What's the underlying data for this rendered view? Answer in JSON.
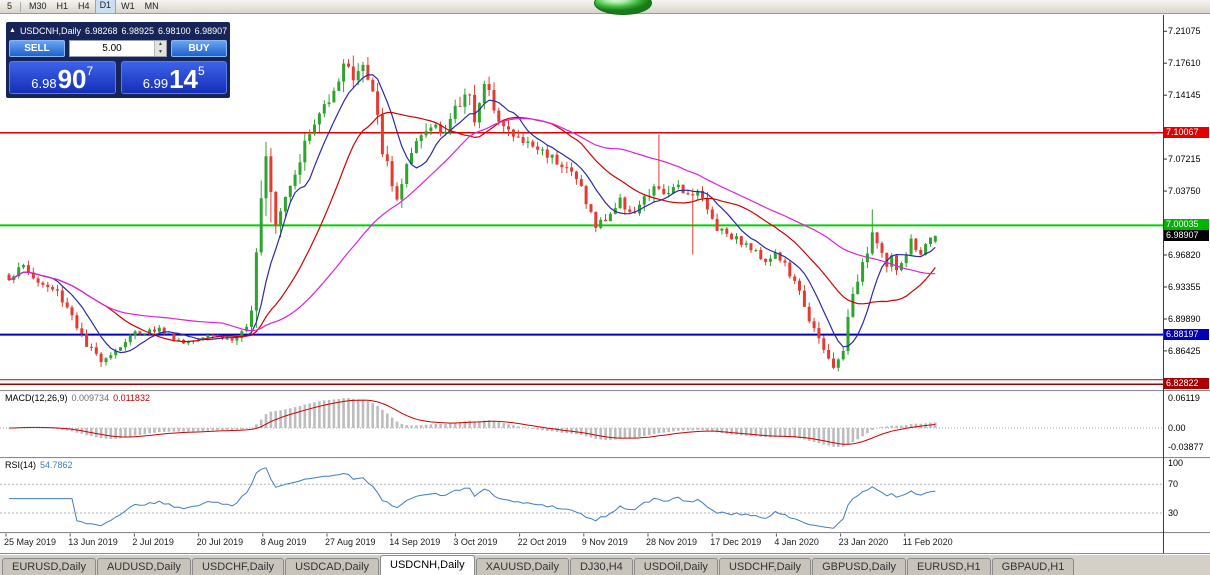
{
  "toolbar": {
    "items": [
      "5",
      "M30",
      "H1",
      "H4",
      "D1",
      "W1",
      "MN"
    ],
    "active": "D1"
  },
  "trade_panel": {
    "header": {
      "collapse_icon": "▲",
      "symbol": "USDCNH,Daily",
      "open": "6.98268",
      "high": "6.98925",
      "low": "6.98100",
      "close": "6.98907"
    },
    "sell_label": "SELL",
    "buy_label": "BUY",
    "volume": "5.00",
    "spin_up": "▲",
    "spin_down": "▼",
    "sell_price": {
      "big_left": "6.98",
      "big": "90",
      "sup": "7"
    },
    "buy_price": {
      "big_left": "6.99",
      "big": "14",
      "sup": "5"
    }
  },
  "price_axis": {
    "ticks": [
      {
        "value": 7.21075,
        "label": "7.21075"
      },
      {
        "value": 7.1761,
        "label": "7.17610"
      },
      {
        "value": 7.14145,
        "label": "7.14145"
      },
      {
        "value": 7.07215,
        "label": "7.07215"
      },
      {
        "value": 7.0375,
        "label": "7.03750"
      },
      {
        "value": 6.9682,
        "label": "6.96820"
      },
      {
        "value": 6.93355,
        "label": "6.93355"
      },
      {
        "value": 6.8989,
        "label": "6.89890"
      },
      {
        "value": 6.86425,
        "label": "6.86425"
      }
    ],
    "highlights": [
      {
        "value": 7.10067,
        "label": "7.10067",
        "bg": "#e00000"
      },
      {
        "value": 7.00035,
        "label": "7.00035",
        "bg": "#00b400"
      },
      {
        "value": 6.98907,
        "label": "6.98907",
        "bg": "#000000"
      },
      {
        "value": 6.88197,
        "label": "6.88197",
        "bg": "#0000b4"
      },
      {
        "value": 6.82822,
        "label": "6.82822",
        "bg": "#a80000"
      }
    ]
  },
  "hlines": [
    {
      "value": 7.10067,
      "color": "#e00000",
      "width": 1.5
    },
    {
      "value": 7.00035,
      "color": "#00d200",
      "width": 2
    },
    {
      "value": 6.88197,
      "color": "#0000c0",
      "width": 2
    },
    {
      "value": 6.833,
      "color": "#cc0000",
      "width": 1
    },
    {
      "value": 6.82822,
      "color": "#990000",
      "width": 1.5
    }
  ],
  "chart_data": {
    "type": "candlestick",
    "title": "USDCNH,Daily",
    "symbol": "USDCNH",
    "timeframe": "Daily",
    "ohlc_current": {
      "open": 6.98268,
      "high": 6.98925,
      "low": 6.981,
      "close": 6.98907
    },
    "bars": 192,
    "price_range": [
      6.8228,
      7.2273
    ],
    "x_axis_dates": [
      "25 May 2019",
      "13 Jun 2019",
      "2 Jul 2019",
      "20 Jul 2019",
      "8 Aug 2019",
      "27 Aug 2019",
      "14 Sep 2019",
      "3 Oct 2019",
      "22 Oct 2019",
      "9 Nov 2019",
      "28 Nov 2019",
      "17 Dec 2019",
      "4 Jan 2020",
      "23 Jan 2020",
      "11 Feb 2020"
    ],
    "close_anchors": [
      [
        0,
        6.944
      ],
      [
        3,
        6.956
      ],
      [
        6,
        6.938
      ],
      [
        10,
        6.928
      ],
      [
        13,
        6.904
      ],
      [
        16,
        6.868
      ],
      [
        19,
        6.856
      ],
      [
        22,
        6.865
      ],
      [
        26,
        6.884
      ],
      [
        31,
        6.888
      ],
      [
        36,
        6.873
      ],
      [
        41,
        6.883
      ],
      [
        46,
        6.876
      ],
      [
        49,
        6.884
      ],
      [
        50,
        6.905
      ],
      [
        51,
        6.985
      ],
      [
        52,
        7.045
      ],
      [
        53,
        7.085
      ],
      [
        54,
        7.05
      ],
      [
        55,
        7.012
      ],
      [
        56,
        7.022
      ],
      [
        58,
        7.048
      ],
      [
        61,
        7.088
      ],
      [
        64,
        7.12
      ],
      [
        67,
        7.152
      ],
      [
        70,
        7.178
      ],
      [
        71,
        7.162
      ],
      [
        73,
        7.172
      ],
      [
        75,
        7.14
      ],
      [
        77,
        7.085
      ],
      [
        79,
        7.04
      ],
      [
        80,
        7.032
      ],
      [
        82,
        7.062
      ],
      [
        85,
        7.096
      ],
      [
        88,
        7.112
      ],
      [
        90,
        7.104
      ],
      [
        93,
        7.132
      ],
      [
        95,
        7.148
      ],
      [
        96,
        7.118
      ],
      [
        98,
        7.148
      ],
      [
        100,
        7.132
      ],
      [
        102,
        7.108
      ],
      [
        104,
        7.096
      ],
      [
        107,
        7.089
      ],
      [
        111,
        7.078
      ],
      [
        115,
        7.064
      ],
      [
        118,
        7.042
      ],
      [
        121,
        6.998
      ],
      [
        123,
        7.008
      ],
      [
        126,
        7.026
      ],
      [
        129,
        7.014
      ],
      [
        132,
        7.034
      ],
      [
        134,
        7.042
      ],
      [
        136,
        7.03
      ],
      [
        138,
        7.046
      ],
      [
        140,
        7.034
      ],
      [
        142,
        7.04
      ],
      [
        144,
        7.016
      ],
      [
        146,
        6.999
      ],
      [
        148,
        6.993
      ],
      [
        152,
        6.979
      ],
      [
        156,
        6.963
      ],
      [
        158,
        6.97
      ],
      [
        160,
        6.957
      ],
      [
        162,
        6.937
      ],
      [
        164,
        6.915
      ],
      [
        166,
        6.886
      ],
      [
        168,
        6.863
      ],
      [
        170,
        6.846
      ],
      [
        171,
        6.853
      ],
      [
        172,
        6.87
      ],
      [
        173,
        6.896
      ],
      [
        174,
        6.92
      ],
      [
        175,
        6.944
      ],
      [
        176,
        6.963
      ],
      [
        177,
        6.976
      ],
      [
        178,
        6.993
      ],
      [
        179,
        6.986
      ],
      [
        180,
        6.969
      ],
      [
        181,
        6.956
      ],
      [
        182,
        6.963
      ],
      [
        183,
        6.953
      ],
      [
        184,
        6.959
      ],
      [
        185,
        6.973
      ],
      [
        186,
        6.983
      ],
      [
        187,
        6.976
      ],
      [
        188,
        6.969
      ],
      [
        189,
        6.981
      ],
      [
        190,
        6.986
      ],
      [
        191,
        6.98907
      ]
    ],
    "vol_anchors": [
      [
        0,
        0.01
      ],
      [
        15,
        0.012
      ],
      [
        25,
        0.007
      ],
      [
        45,
        0.006
      ],
      [
        50,
        0.018
      ],
      [
        52,
        0.05
      ],
      [
        55,
        0.035
      ],
      [
        58,
        0.02
      ],
      [
        64,
        0.018
      ],
      [
        70,
        0.022
      ],
      [
        75,
        0.025
      ],
      [
        79,
        0.022
      ],
      [
        85,
        0.016
      ],
      [
        95,
        0.022
      ],
      [
        100,
        0.018
      ],
      [
        108,
        0.012
      ],
      [
        116,
        0.012
      ],
      [
        121,
        0.014
      ],
      [
        130,
        0.012
      ],
      [
        134,
        0.016
      ],
      [
        140,
        0.012
      ],
      [
        146,
        0.012
      ],
      [
        152,
        0.008
      ],
      [
        158,
        0.009
      ],
      [
        164,
        0.012
      ],
      [
        170,
        0.014
      ],
      [
        174,
        0.016
      ],
      [
        180,
        0.012
      ],
      [
        186,
        0.009
      ],
      [
        191,
        0.007
      ]
    ],
    "spikes": [
      {
        "i": 134,
        "high": 0.048
      },
      {
        "i": 141,
        "low": 0.062
      },
      {
        "i": 54,
        "low": 0.03
      },
      {
        "i": 178,
        "high": 0.018
      }
    ],
    "moving_averages": [
      {
        "period": 8,
        "color": "#2a2aa8"
      },
      {
        "period": 21,
        "color": "#d40000"
      },
      {
        "period": 45,
        "color": "#dd22dd"
      }
    ],
    "bull_color": "#2fa32f",
    "bear_color": "#e33b30"
  },
  "macd": {
    "label": "MACD(12,26,9)",
    "value": "0.009734",
    "signal_value": "0.011832",
    "fast": 12,
    "slow": 26,
    "signal": 9,
    "axis": [
      "0.06119",
      "0.00",
      "-0.03877"
    ],
    "hist_color": "#bdbdbd",
    "line_color": "#d00000"
  },
  "rsi": {
    "label": "RSI(14)",
    "value": "54.7862",
    "period": 14,
    "levels": [
      70,
      30
    ],
    "axis": [
      "100",
      "70",
      "30"
    ],
    "color": "#3f7cc4"
  },
  "tabs": {
    "items": [
      "EURUSD,Daily",
      "AUDUSD,Daily",
      "USDCHF,Daily",
      "USDCAD,Daily",
      "USDCNH,Daily",
      "XAUUSD,Daily",
      "DJ30,H4",
      "USDOil,Daily",
      "USDCHF,Daily",
      "GBPUSD,Daily",
      "EURUSD,H1",
      "GBPAUD,H1"
    ],
    "active_index": 4
  }
}
